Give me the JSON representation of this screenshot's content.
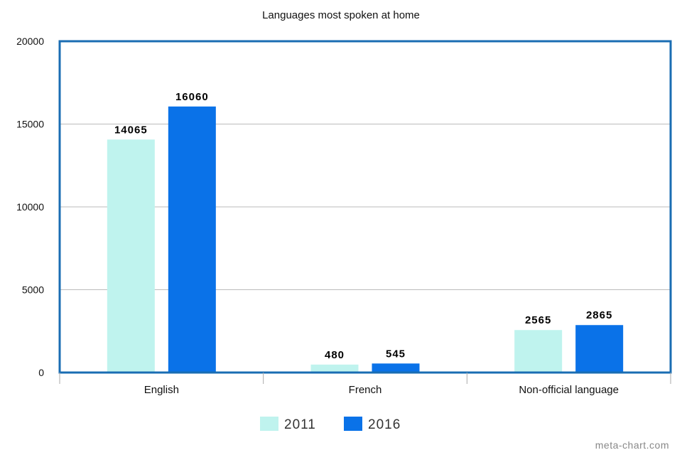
{
  "chart_data": {
    "type": "bar",
    "title": "Languages most spoken at home",
    "categories": [
      "English",
      "French",
      "Non-official language"
    ],
    "series": [
      {
        "name": "2011",
        "values": [
          14065,
          480,
          2565
        ],
        "color": "#bff3ee"
      },
      {
        "name": "2016",
        "values": [
          16060,
          545,
          2865
        ],
        "color": "#0a72e8"
      }
    ],
    "data_labels": [
      [
        "14065",
        "480",
        "2565"
      ],
      [
        "16060",
        "545",
        "2865"
      ]
    ],
    "ylim": [
      0,
      20000
    ],
    "yticks": [
      "0",
      "5000",
      "10000",
      "15000",
      "20000"
    ],
    "grid": true,
    "legend_position": "bottom",
    "frame_color": "#1a6db3",
    "grid_color": "#bbbbbb"
  },
  "watermark": "meta-chart.com"
}
